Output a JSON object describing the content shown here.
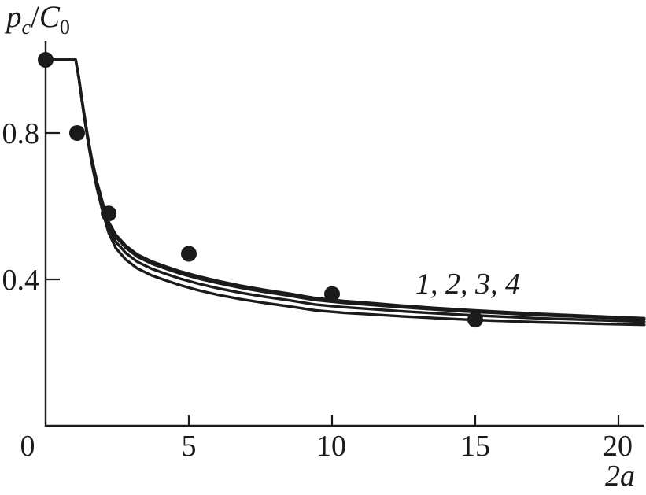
{
  "figure": {
    "background": "#ffffff",
    "ink": "#1b1b1b"
  },
  "chart_data": {
    "type": "line+scatter",
    "title": "",
    "ylabel": "p_c/C_0",
    "xlabel": "2a",
    "ylabel_parts": {
      "p": "p",
      "p_sub": "c",
      "slash": "/",
      "C": "C",
      "C_sub": "0"
    },
    "xlabel_parts": {
      "num": "2",
      "var": "a"
    },
    "curve_label": "1, 2, 3, 4",
    "curve_names": [
      "1",
      "2",
      "3",
      "4"
    ],
    "xlim": [
      0,
      20.9
    ],
    "ylim": [
      0,
      1.05
    ],
    "x_tick_values": [
      5,
      10,
      15,
      20
    ],
    "x_tick_labels": [
      "0",
      "5",
      "10",
      "15",
      "20"
    ],
    "y_tick_values": [
      0.8,
      0.4
    ],
    "y_tick_labels": [
      "0.8",
      "0.4"
    ],
    "grid": false,
    "legend_position": "inline-label-above-curves",
    "points": {
      "x": [
        0,
        1.1,
        2.2,
        5,
        10,
        15
      ],
      "y": [
        1.0,
        0.8,
        0.58,
        0.47,
        0.36,
        0.29
      ]
    },
    "curves": {
      "note": "four nearly coincident curves; lower curves offset from master by offsets*separation_profile",
      "offsets": [
        0,
        0.006,
        0.02,
        0.038
      ],
      "master": [
        [
          0,
          1.0
        ],
        [
          0.5,
          1.0
        ],
        [
          1.05,
          1.0
        ],
        [
          1.15,
          0.955
        ],
        [
          1.3,
          0.875
        ],
        [
          1.45,
          0.8
        ],
        [
          1.6,
          0.735
        ],
        [
          1.8,
          0.665
        ],
        [
          2.0,
          0.607
        ],
        [
          2.2,
          0.557
        ],
        [
          2.45,
          0.522
        ],
        [
          2.8,
          0.492
        ],
        [
          3.2,
          0.468
        ],
        [
          3.7,
          0.449
        ],
        [
          4.2,
          0.435
        ],
        [
          4.7,
          0.422
        ],
        [
          5.3,
          0.409
        ],
        [
          6.0,
          0.396
        ],
        [
          6.8,
          0.383
        ],
        [
          7.6,
          0.372
        ],
        [
          8.5,
          0.361
        ],
        [
          9.4,
          0.349
        ],
        [
          10.4,
          0.341
        ],
        [
          11.4,
          0.335
        ],
        [
          12.5,
          0.328
        ],
        [
          13.6,
          0.322
        ],
        [
          14.8,
          0.316
        ],
        [
          16.0,
          0.311
        ],
        [
          17.2,
          0.306
        ],
        [
          18.4,
          0.302
        ],
        [
          19.6,
          0.298
        ],
        [
          20.9,
          0.294
        ]
      ]
    }
  }
}
